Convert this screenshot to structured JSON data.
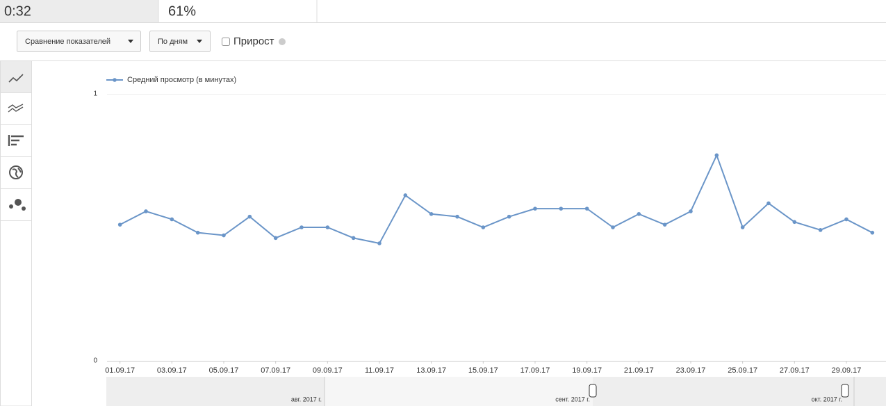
{
  "header": {
    "cells": [
      "0:32",
      "61%"
    ]
  },
  "toolbar": {
    "compare": "Сравнение показателей",
    "period": "По дням",
    "growth": "Прирост"
  },
  "chart_data": {
    "type": "line",
    "categories": [
      "01.09.17",
      null,
      "03.09.17",
      null,
      "05.09.17",
      null,
      "07.09.17",
      null,
      "09.09.17",
      null,
      "11.09.17",
      null,
      "13.09.17",
      null,
      "15.09.17",
      null,
      "17.09.17",
      null,
      "19.09.17",
      null,
      "21.09.17",
      null,
      "23.09.17",
      null,
      "25.09.17",
      null,
      "27.09.17",
      null,
      "29.09.17",
      null
    ],
    "series": [
      {
        "name": "Средний просмотр (в минутах)",
        "color": "#6a95c8",
        "values": [
          0.51,
          0.56,
          0.53,
          0.48,
          0.47,
          0.54,
          0.46,
          0.5,
          0.5,
          0.46,
          0.44,
          0.62,
          0.55,
          0.54,
          0.5,
          0.54,
          0.57,
          0.57,
          0.57,
          0.5,
          0.55,
          0.51,
          0.56,
          0.77,
          0.5,
          0.59,
          0.52,
          0.49,
          0.53,
          0.48
        ]
      }
    ],
    "ylim": [
      0,
      1
    ],
    "yticks": [
      0,
      1
    ],
    "grid": true
  },
  "navigator": {
    "labels": [
      "авг. 2017 г.",
      "сент. 2017 г.",
      "окт. 2017 г."
    ]
  }
}
